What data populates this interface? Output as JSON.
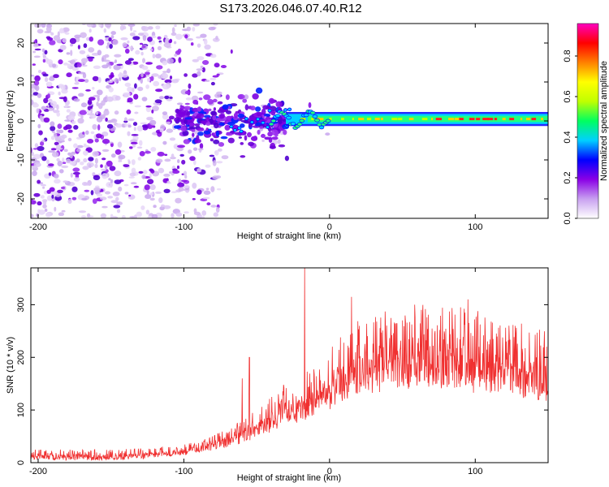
{
  "title": "S173.2026.046.07.40.R12",
  "chart_data": [
    {
      "type": "heatmap",
      "name": "spectrogram",
      "xlabel": "Height of straight line (km)",
      "ylabel": "Frequency (Hz)",
      "xlim": [
        -205,
        150
      ],
      "ylim": [
        -25,
        25
      ],
      "xticks": [
        -200,
        -100,
        0,
        100
      ],
      "yticks": [
        -20,
        -10,
        0,
        10,
        20
      ],
      "colorbar": {
        "label": "Normalized spectral amplitude",
        "range": [
          0.0,
          0.96
        ],
        "ticks": [
          0.0,
          0.2,
          0.4,
          0.6,
          0.8
        ],
        "tick_labels": [
          "0.0",
          "0.2",
          "0.4",
          "0.6",
          "0.8"
        ],
        "colormap": [
          "#ffffff",
          "#c8a0f0",
          "#8a00e6",
          "#0000ff",
          "#00d0ff",
          "#00ff60",
          "#c0ff00",
          "#ffff00",
          "#ff8000",
          "#ff0000",
          "#ff00c0"
        ]
      },
      "description_points": {
        "line_center_hz": 0.5,
        "line_visible_from_km": -30,
        "scatter_region_km": [
          -205,
          -30
        ]
      }
    },
    {
      "type": "line",
      "name": "snr",
      "xlabel": "Height of straight line (km)",
      "ylabel": "SNR (10 * v/v)",
      "xlim": [
        -205,
        150
      ],
      "ylim": [
        0,
        370
      ],
      "xticks": [
        -200,
        -100,
        0,
        100
      ],
      "yticks": [
        0,
        100,
        200,
        300
      ],
      "color": "#f03030",
      "x": [
        -205,
        -180,
        -150,
        -130,
        -110,
        -100,
        -90,
        -80,
        -70,
        -60,
        -50,
        -40,
        -30,
        -20,
        -10,
        0,
        10,
        20,
        30,
        40,
        50,
        60,
        70,
        80,
        90,
        100,
        110,
        120,
        130,
        140,
        150
      ],
      "y": [
        15,
        15,
        15,
        17,
        22,
        25,
        30,
        38,
        48,
        60,
        75,
        95,
        115,
        125,
        140,
        160,
        190,
        205,
        215,
        222,
        225,
        228,
        225,
        222,
        220,
        215,
        210,
        205,
        200,
        195,
        190
      ],
      "spikes": [
        {
          "x": -17,
          "y": 370
        },
        {
          "x": 15,
          "y": 315
        },
        {
          "x": 95,
          "y": 310
        },
        {
          "x": -55,
          "y": 200
        },
        {
          "x": -60,
          "y": 160
        }
      ]
    }
  ]
}
